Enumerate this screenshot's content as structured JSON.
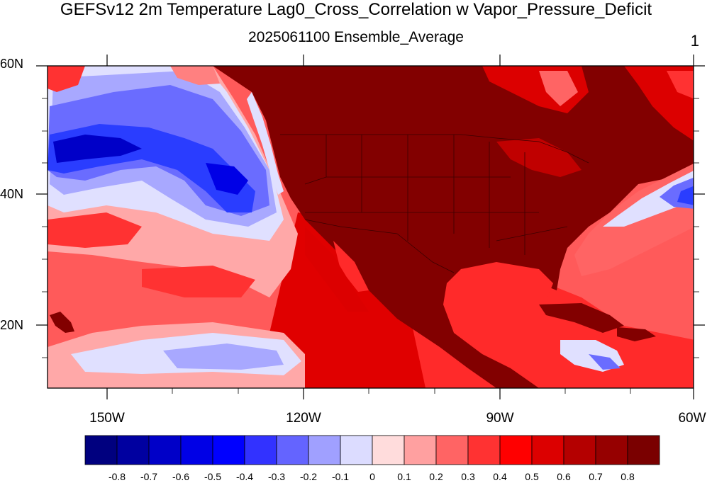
{
  "title": "GEFSv12 2m Temperature Lag0_Cross_Correlation w Vapor_Pressure_Deficit",
  "subtitle": "2025061100 Ensemble_Average",
  "panel_label": "1",
  "lat_labels": [
    "60N",
    "40N",
    "20N"
  ],
  "lon_labels": [
    "150W",
    "120W",
    "90W",
    "60W"
  ],
  "colorbar": {
    "labels": [
      "-0.8",
      "-0.7",
      "-0.6",
      "-0.5",
      "-0.4",
      "-0.3",
      "-0.2",
      "-0.1",
      "0",
      "0.1",
      "0.2",
      "0.3",
      "0.4",
      "0.5",
      "0.6",
      "0.7",
      "0.8"
    ],
    "colors": [
      "#00007f",
      "#0000a0",
      "#0000c8",
      "#0000e6",
      "#0000ff",
      "#3232ff",
      "#6464ff",
      "#a0a0ff",
      "#dcdcff",
      "#ffdcdc",
      "#ffa0a0",
      "#ff6464",
      "#ff3232",
      "#ff0000",
      "#dc0000",
      "#b40000",
      "#960000",
      "#7a0000"
    ]
  },
  "map_colors": {
    "ocean_blue_core": "#2a3dff",
    "ocean_blue_mid": "#6a6cff",
    "ocean_blue_light": "#a8a8ff",
    "ocean_white": "#e0e0ff",
    "pink": "#ffa8a8",
    "light_red": "#ff6464",
    "red": "#ff2a2a",
    "deep_red": "#dc0000",
    "land_dark": "#820000"
  }
}
